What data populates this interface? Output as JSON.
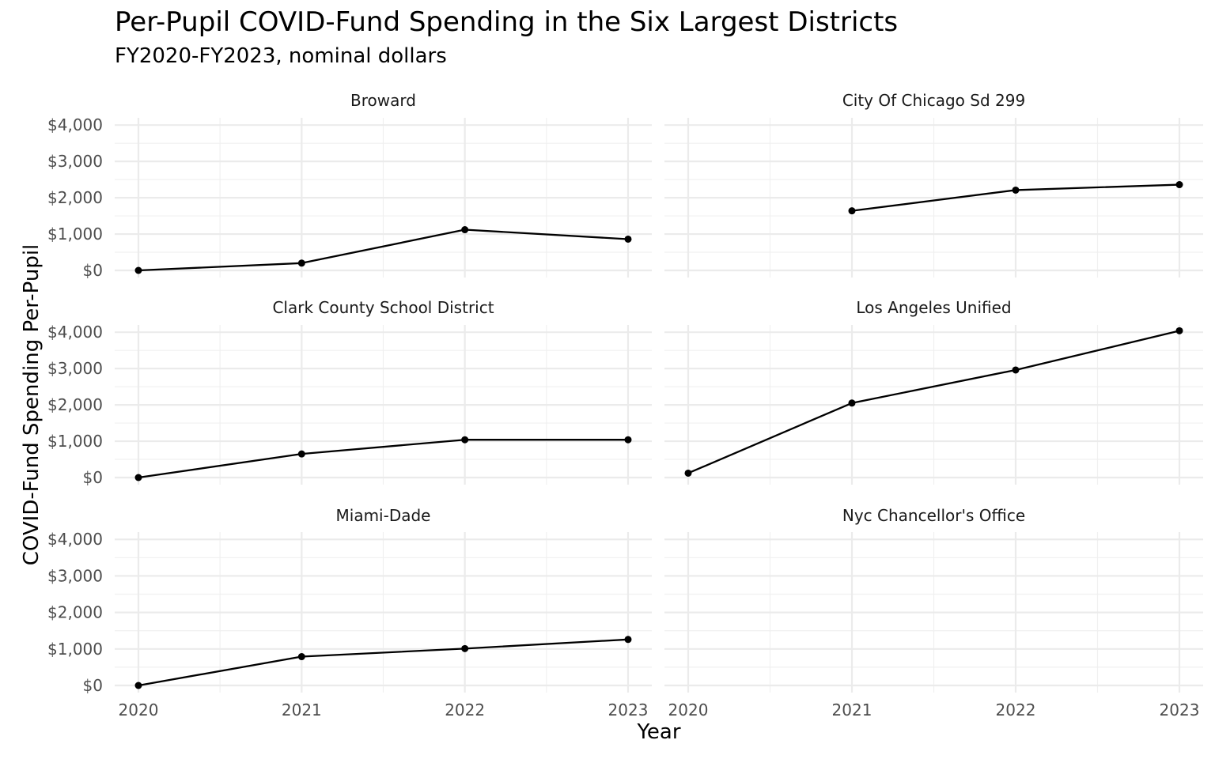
{
  "chart_data": {
    "type": "line",
    "title": "Per-Pupil COVID-Fund Spending in the Six Largest Districts",
    "subtitle": "FY2020-FY2023, nominal dollars",
    "xlabel": "Year",
    "ylabel": "COVID-Fund Spending Per-Pupil",
    "x": [
      2020,
      2021,
      2022,
      2023
    ],
    "x_tick_labels": [
      "2020",
      "2021",
      "2022",
      "2023"
    ],
    "y_ticks": [
      0,
      1000,
      2000,
      3000,
      4000
    ],
    "y_tick_labels": [
      "$0",
      "$1,000",
      "$2,000",
      "$3,000",
      "$4,000"
    ],
    "ylim": [
      0,
      4200
    ],
    "xlim": [
      2020,
      2023
    ],
    "grid": true,
    "line_color": "#000000",
    "facets": [
      {
        "name": "Broward",
        "values": [
          0,
          200,
          1120,
          860
        ]
      },
      {
        "name": "City Of Chicago Sd 299",
        "values": [
          null,
          1640,
          2210,
          2360
        ]
      },
      {
        "name": "Clark County School District",
        "values": [
          0,
          650,
          1040,
          1040
        ]
      },
      {
        "name": "Los Angeles Unified",
        "values": [
          120,
          2050,
          2960,
          4040
        ]
      },
      {
        "name": "Miami-Dade",
        "values": [
          0,
          790,
          1010,
          1260
        ]
      },
      {
        "name": "Nyc Chancellor's Office",
        "values": [
          null,
          null,
          null,
          null
        ]
      }
    ]
  }
}
